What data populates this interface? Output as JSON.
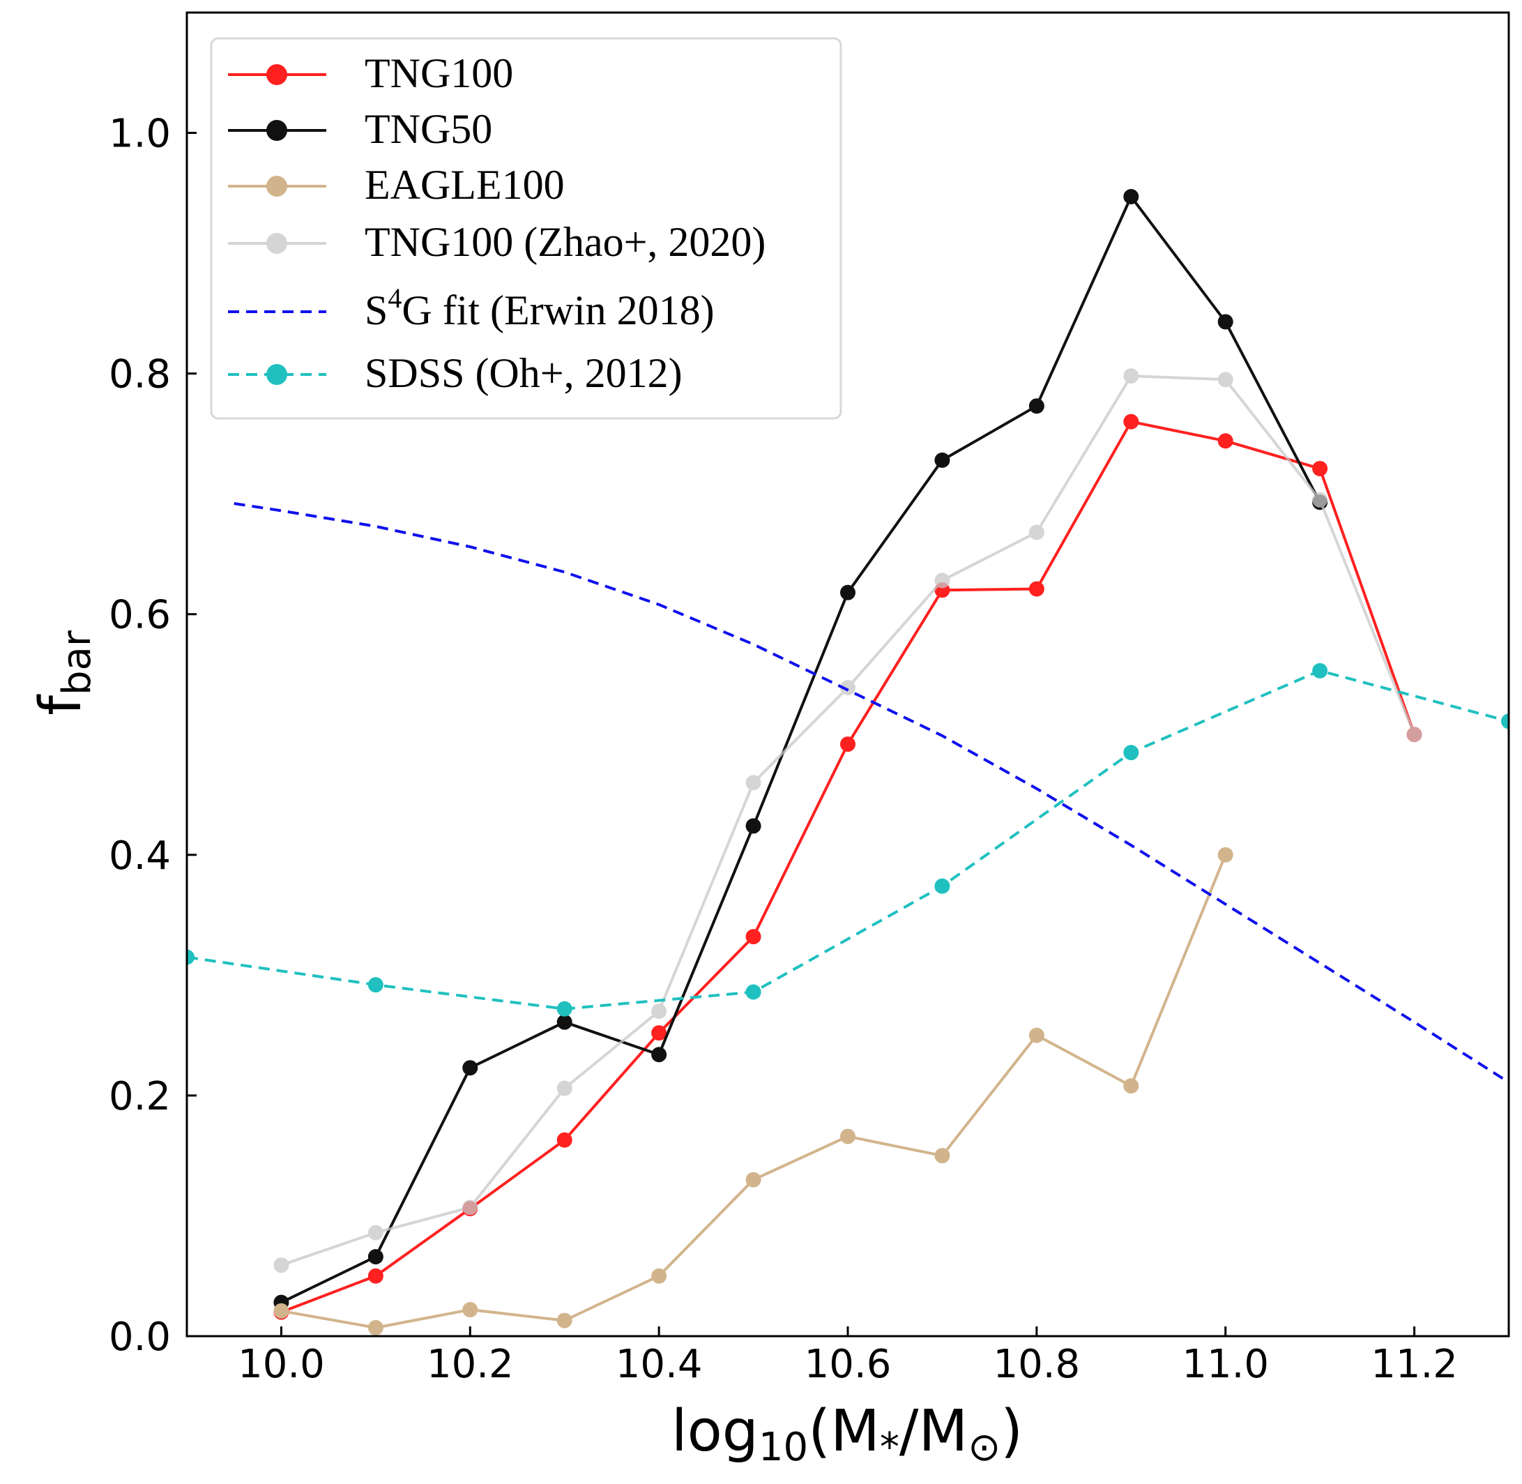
{
  "chart_data": {
    "type": "line",
    "title": "",
    "xlabel": "log10(M*/M⊙)",
    "xlabel_parts": {
      "pre": "log",
      "sub": "10",
      "mid": "(M",
      "star": "*",
      "slash": "/M",
      "sun": "⊙",
      "post": ")"
    },
    "ylabel": "f_bar",
    "ylabel_parts": {
      "main": "f",
      "sub": "bar"
    },
    "xlim": [
      9.9,
      11.3
    ],
    "ylim": [
      0.0,
      1.1
    ],
    "xticks": [
      10.0,
      10.2,
      10.4,
      10.6,
      10.8,
      11.0,
      11.2
    ],
    "xtick_labels": [
      "10.0",
      "10.2",
      "10.4",
      "10.6",
      "10.8",
      "11.0",
      "11.2"
    ],
    "yticks": [
      0.0,
      0.2,
      0.4,
      0.6,
      0.8,
      1.0
    ],
    "ytick_labels": [
      "0.0",
      "0.2",
      "0.4",
      "0.6",
      "0.8",
      "1.0"
    ],
    "grid": false,
    "legend_position": "top-left",
    "series": [
      {
        "name": "TNG100",
        "color": "#ff2020",
        "linestyle": "solid",
        "marker": true,
        "opacity": 1,
        "x": [
          10.0,
          10.1,
          10.2,
          10.3,
          10.4,
          10.5,
          10.6,
          10.7,
          10.8,
          10.9,
          11.0,
          11.1,
          11.2
        ],
        "y": [
          0.02,
          0.05,
          0.106,
          0.163,
          0.252,
          0.332,
          0.492,
          0.62,
          0.621,
          0.76,
          0.744,
          0.721,
          0.5
        ]
      },
      {
        "name": "TNG50",
        "color": "#111111",
        "linestyle": "solid",
        "marker": true,
        "opacity": 1,
        "x": [
          10.0,
          10.1,
          10.2,
          10.3,
          10.4,
          10.5,
          10.6,
          10.7,
          10.8,
          10.9,
          11.0,
          11.1
        ],
        "y": [
          0.028,
          0.066,
          0.223,
          0.261,
          0.234,
          0.424,
          0.618,
          0.728,
          0.773,
          0.947,
          0.843,
          0.693
        ]
      },
      {
        "name": "EAGLE100",
        "color": "#d2b48c",
        "linestyle": "solid",
        "marker": true,
        "opacity": 1,
        "x": [
          10.0,
          10.1,
          10.2,
          10.3,
          10.4,
          10.5,
          10.6,
          10.7,
          10.8,
          10.9,
          11.0
        ],
        "y": [
          0.021,
          0.007,
          0.022,
          0.013,
          0.05,
          0.13,
          0.166,
          0.15,
          0.25,
          0.208,
          0.4
        ]
      },
      {
        "name": "TNG100 (Zhao+, 2020)",
        "color": "#c8c8c8",
        "linestyle": "solid",
        "marker": true,
        "opacity": 0.75,
        "x": [
          10.0,
          10.1,
          10.2,
          10.3,
          10.4,
          10.5,
          10.6,
          10.7,
          10.8,
          10.9,
          11.0,
          11.1,
          11.2
        ],
        "y": [
          0.059,
          0.086,
          0.107,
          0.206,
          0.27,
          0.46,
          0.539,
          0.628,
          0.668,
          0.798,
          0.795,
          0.695,
          0.5
        ]
      },
      {
        "name": "S4G fit (Erwin 2018)",
        "legend_parts": {
          "pre": "S",
          "sup": "4",
          "post": "G fit (Erwin 2018)"
        },
        "color": "#1010ee",
        "linestyle": "dashed",
        "marker": false,
        "opacity": 1,
        "x": [
          9.95,
          10.0,
          10.1,
          10.2,
          10.3,
          10.4,
          10.5,
          10.6,
          10.7,
          10.8,
          10.9,
          11.0,
          11.1,
          11.2,
          11.3
        ],
        "y": [
          0.692,
          0.686,
          0.673,
          0.656,
          0.635,
          0.608,
          0.575,
          0.537,
          0.499,
          0.455,
          0.408,
          0.359,
          0.31,
          0.261,
          0.211
        ]
      },
      {
        "name": "SDSS (Oh+, 2012)",
        "color": "#20c0c0",
        "linestyle": "dashed",
        "marker": true,
        "opacity": 1,
        "x": [
          9.9,
          10.1,
          10.3,
          10.5,
          10.7,
          10.9,
          11.1,
          11.3
        ],
        "y": [
          0.315,
          0.292,
          0.272,
          0.286,
          0.374,
          0.485,
          0.553,
          0.511
        ]
      }
    ]
  }
}
